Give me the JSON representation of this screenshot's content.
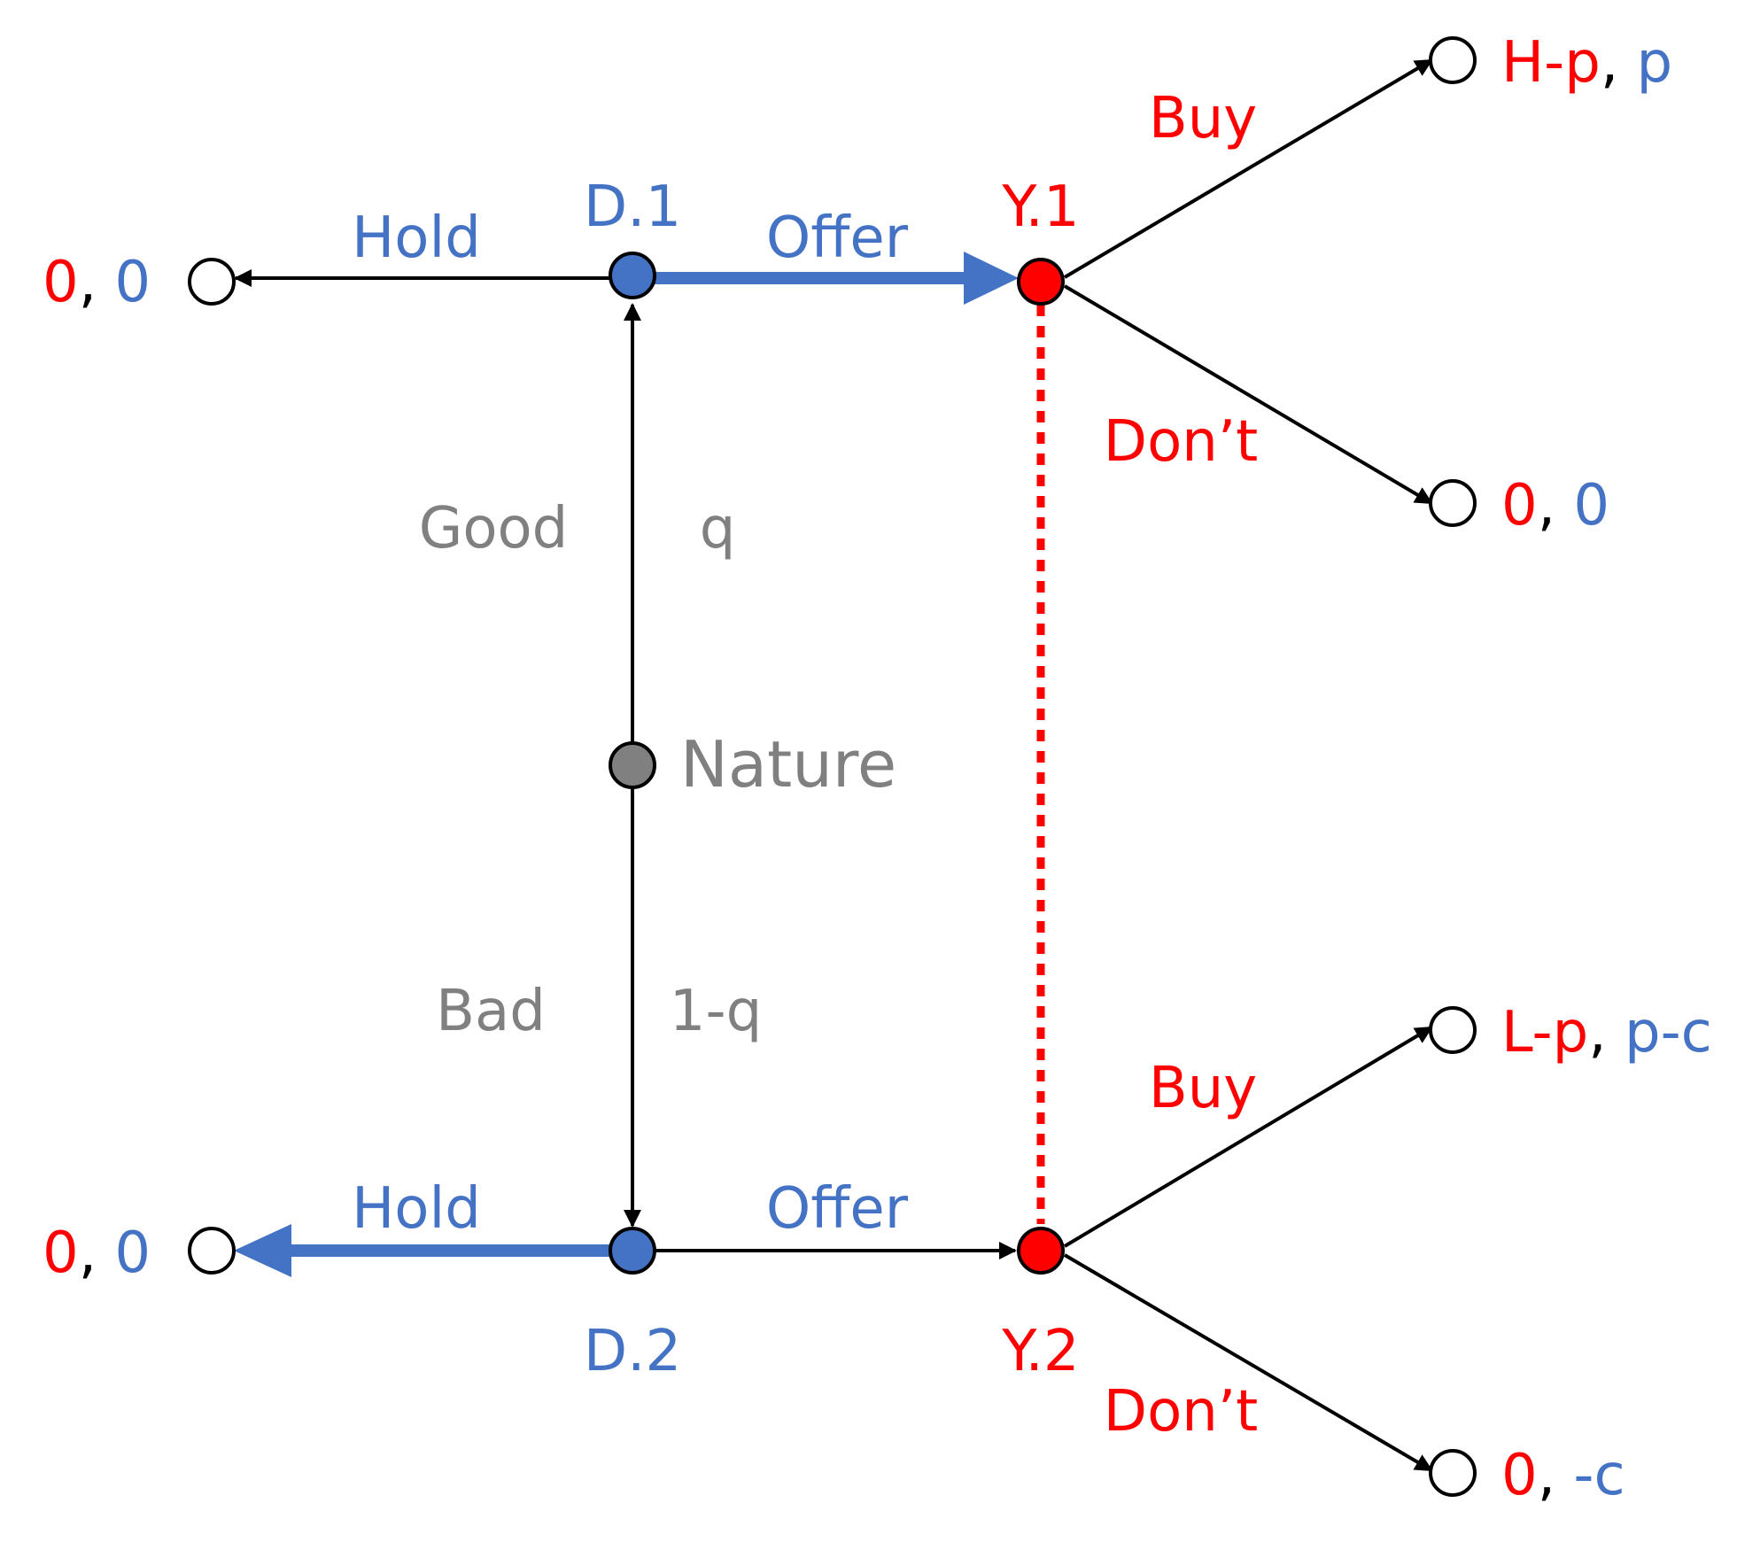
{
  "colors": {
    "player1": "#ff0000",
    "player2": "#4472c4",
    "nature": "#808080",
    "edge": "#000000"
  },
  "nodes": {
    "d1": "D.1",
    "d2": "D.2",
    "y1": "Y.1",
    "y2": "Y.2",
    "nature": "Nature"
  },
  "actions": {
    "hold_top": "Hold",
    "offer_top": "Offer",
    "hold_bottom": "Hold",
    "offer_bottom": "Offer",
    "buy_top": "Buy",
    "dont_top": "Don’t",
    "buy_bottom": "Buy",
    "dont_bottom": "Don’t"
  },
  "nature_branches": {
    "good": "Good",
    "good_prob": "q",
    "bad": "Bad",
    "bad_prob": "1-q"
  },
  "payoffs": {
    "hold_top": {
      "p1": "0",
      "p2": "0"
    },
    "hold_bottom": {
      "p1": "0",
      "p2": "0"
    },
    "buy_top": {
      "p1": "H-p",
      "p2": "p"
    },
    "dont_top": {
      "p1": "0",
      "p2": "0"
    },
    "buy_bottom": {
      "p1": "L-p",
      "p2": "p-c"
    },
    "dont_bottom": {
      "p1": "0",
      "p2": "-c"
    }
  },
  "separator": ", "
}
